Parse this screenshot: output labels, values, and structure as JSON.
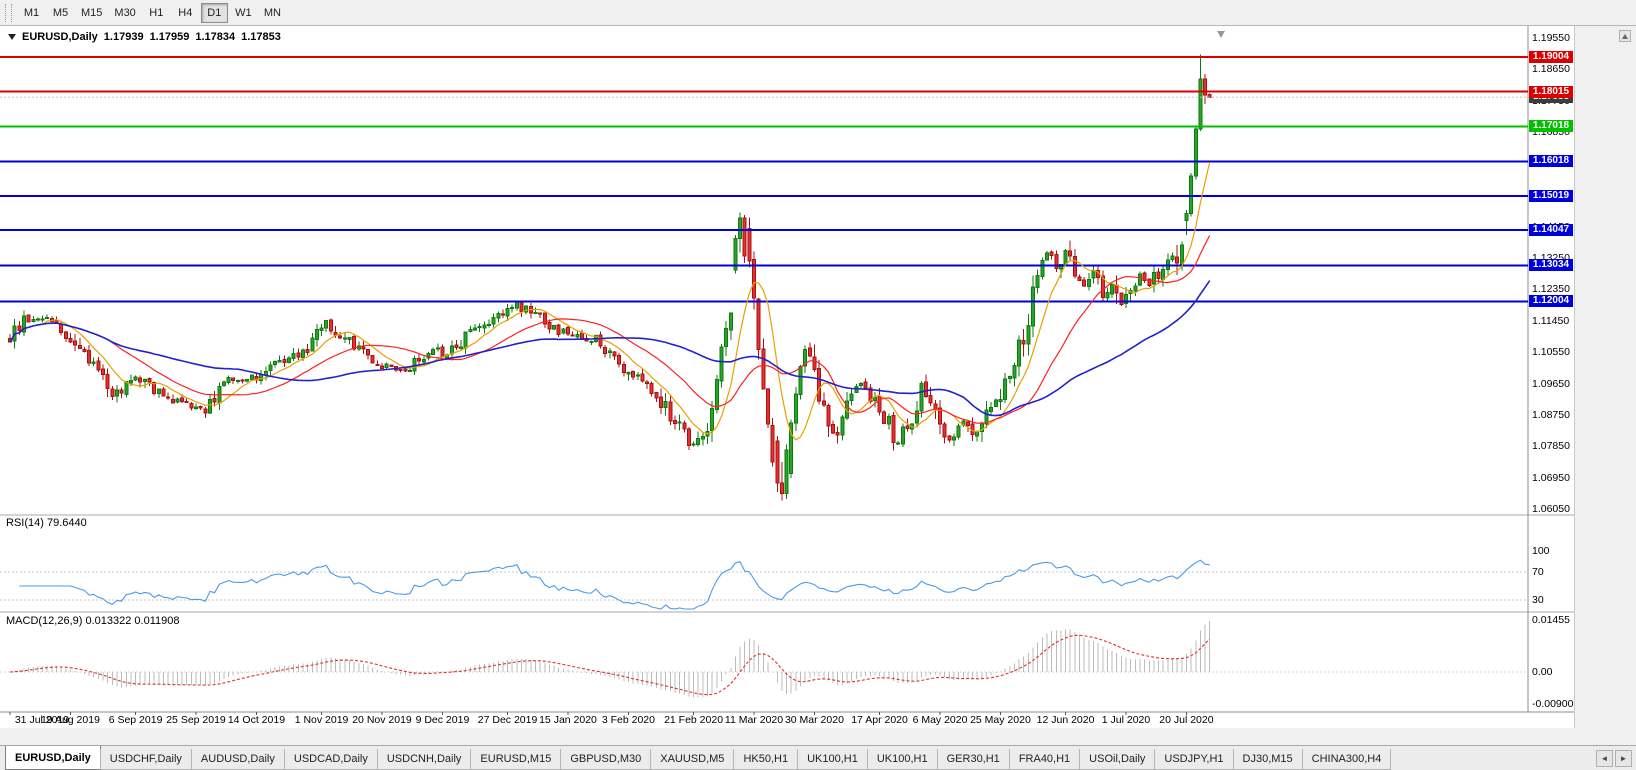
{
  "toolbar": {
    "timeframes": [
      "M1",
      "M5",
      "M15",
      "M30",
      "H1",
      "H4",
      "D1",
      "W1",
      "MN"
    ],
    "active_timeframe": "D1"
  },
  "chart": {
    "title": {
      "symbol": "EURUSD,Daily",
      "open": "1.17939",
      "high": "1.17959",
      "low": "1.17834",
      "close": "1.17853"
    },
    "price_axis": {
      "ticks": [
        "1.19550",
        "1.18650",
        "1.17750",
        "1.16850",
        "1.15950",
        "1.15050",
        "1.14150",
        "1.13250",
        "1.12350",
        "1.11450",
        "1.10550",
        "1.09650",
        "1.08750",
        "1.07850",
        "1.06950",
        "1.06050"
      ],
      "price_max": 1.1978,
      "price_min": 1.06
    },
    "hlines": [
      {
        "value": "1.19004",
        "price": 1.19004,
        "color": "#dd0000"
      },
      {
        "value": "1.18015",
        "price": 1.18015,
        "color": "#dd0000"
      },
      {
        "value": "1.17018",
        "price": 1.17018,
        "color": "#00c000"
      },
      {
        "value": "1.16018",
        "price": 1.16018,
        "color": "#0000dd"
      },
      {
        "value": "1.15019",
        "price": 1.15019,
        "color": "#0000dd"
      },
      {
        "value": "1.14047",
        "price": 1.14047,
        "color": "#0000dd"
      },
      {
        "value": "1.13034",
        "price": 1.13034,
        "color": "#0000dd"
      },
      {
        "value": "1.12004",
        "price": 1.12004,
        "color": "#0000dd"
      }
    ],
    "bid_badge": {
      "value": "1.17853",
      "price": 1.17853,
      "color": "#3c3c3c"
    },
    "colors": {
      "up_fill": "#26a626",
      "up_stroke": "#0f7a0f",
      "down_fill": "#e53030",
      "down_stroke": "#a81111",
      "ma_fast": "#e8a000",
      "ma_mid": "#ff2020",
      "ma_slow": "#2222cc",
      "rsi_line": "#4a9ce8",
      "macd_hist": "#bcbcbc",
      "macd_signal": "#e03030",
      "bid_line": "#c0c0c0",
      "level_dash": "#c8c8c8"
    }
  },
  "rsi": {
    "label": "RSI(14) 79.6440",
    "levels": [
      {
        "label": "100",
        "v": 100
      },
      {
        "label": "70",
        "v": 70
      },
      {
        "label": "30",
        "v": 30
      }
    ]
  },
  "macd": {
    "label": "MACD(12,26,9) 0.013322 0.011908",
    "axis": [
      {
        "label": "0.01455",
        "v": 0.01455
      },
      {
        "label": "0.00",
        "v": 0
      },
      {
        "label": "-0.00900",
        "v": -0.009
      }
    ]
  },
  "date_axis": [
    {
      "label": "31 Jul 2019",
      "i": 0
    },
    {
      "label": "19 Aug 2019",
      "i": 13
    },
    {
      "label": "6 Sep 2019",
      "i": 27
    },
    {
      "label": "25 Sep 2019",
      "i": 40
    },
    {
      "label": "14 Oct 2019",
      "i": 53
    },
    {
      "label": "1 Nov 2019",
      "i": 67
    },
    {
      "label": "20 Nov 2019",
      "i": 80
    },
    {
      "label": "9 Dec 2019",
      "i": 93
    },
    {
      "label": "27 Dec 2019",
      "i": 107
    },
    {
      "label": "15 Jan 2020",
      "i": 120
    },
    {
      "label": "3 Feb 2020",
      "i": 133
    },
    {
      "label": "21 Feb 2020",
      "i": 147
    },
    {
      "label": "11 Mar 2020",
      "i": 160
    },
    {
      "label": "30 Mar 2020",
      "i": 173
    },
    {
      "label": "17 Apr 2020",
      "i": 187
    },
    {
      "label": "6 May 2020",
      "i": 200
    },
    {
      "label": "25 May 2020",
      "i": 213
    },
    {
      "label": "12 Jun 2020",
      "i": 227
    },
    {
      "label": "1 Jul 2020",
      "i": 240
    },
    {
      "label": "20 Jul 2020",
      "i": 253
    }
  ],
  "tabs": {
    "items": [
      "EURUSD,Daily",
      "USDCHF,Daily",
      "AUDUSD,Daily",
      "USDCAD,Daily",
      "USDCNH,Daily",
      "EURUSD,M15",
      "GBPUSD,M30",
      "XAUUSD,M5",
      "HK50,H1",
      "UK100,H1",
      "UK100,H1",
      "GER30,H1",
      "FRA40,H1",
      "USOil,Daily",
      "USDJPY,H1",
      "DJ30,M15",
      "CHINA300,H4"
    ],
    "active_index": 0,
    "scroll_left": "◄",
    "scroll_right": "►"
  },
  "chart_data": {
    "type": "candlestick",
    "symbol": "EURUSD",
    "timeframe": "Daily",
    "last_ohlc": {
      "open": 1.17939,
      "high": 1.17959,
      "low": 1.17834,
      "close": 1.17853
    },
    "num_candles": 259,
    "seed": 20200806,
    "price_path_anchors": [
      [
        0,
        1.1095
      ],
      [
        3,
        1.1145
      ],
      [
        8,
        1.115
      ],
      [
        14,
        1.1085
      ],
      [
        22,
        1.093
      ],
      [
        27,
        1.099
      ],
      [
        31,
        1.0945
      ],
      [
        36,
        1.0915
      ],
      [
        42,
        1.089
      ],
      [
        47,
        1.0975
      ],
      [
        53,
        1.0985
      ],
      [
        59,
        1.103
      ],
      [
        64,
        1.107
      ],
      [
        68,
        1.114
      ],
      [
        74,
        1.1075
      ],
      [
        80,
        1.1015
      ],
      [
        85,
        1.1005
      ],
      [
        91,
        1.106
      ],
      [
        94,
        1.104
      ],
      [
        98,
        1.11
      ],
      [
        103,
        1.1145
      ],
      [
        107,
        1.118
      ],
      [
        109,
        1.1195
      ],
      [
        113,
        1.116
      ],
      [
        117,
        1.1125
      ],
      [
        120,
        1.1105
      ],
      [
        126,
        1.109
      ],
      [
        133,
        1.1
      ],
      [
        139,
        1.093
      ],
      [
        144,
        1.084
      ],
      [
        147,
        1.079
      ],
      [
        150,
        1.086
      ],
      [
        153,
        1.105
      ],
      [
        155,
        1.1145
      ],
      [
        157,
        1.144
      ],
      [
        158,
        1.143
      ],
      [
        160,
        1.118
      ],
      [
        162,
        1.096
      ],
      [
        164,
        1.076
      ],
      [
        166,
        1.064
      ],
      [
        167,
        1.072
      ],
      [
        169,
        1.092
      ],
      [
        171,
        1.106
      ],
      [
        173,
        1.0985
      ],
      [
        177,
        1.081
      ],
      [
        180,
        1.09
      ],
      [
        183,
        1.097
      ],
      [
        186,
        1.0905
      ],
      [
        188,
        1.087
      ],
      [
        191,
        1.079
      ],
      [
        194,
        1.087
      ],
      [
        196,
        1.096
      ],
      [
        199,
        1.0905
      ],
      [
        202,
        1.079
      ],
      [
        205,
        1.085
      ],
      [
        208,
        1.081
      ],
      [
        210,
        1.089
      ],
      [
        213,
        1.0925
      ],
      [
        216,
        1.103
      ],
      [
        219,
        1.114
      ],
      [
        221,
        1.13
      ],
      [
        223,
        1.133
      ],
      [
        225,
        1.129
      ],
      [
        227,
        1.134
      ],
      [
        229,
        1.129
      ],
      [
        231,
        1.1245
      ],
      [
        233,
        1.129
      ],
      [
        235,
        1.121
      ],
      [
        237,
        1.1245
      ],
      [
        239,
        1.119
      ],
      [
        241,
        1.1235
      ],
      [
        243,
        1.128
      ],
      [
        245,
        1.1245
      ],
      [
        247,
        1.128
      ],
      [
        249,
        1.131
      ],
      [
        251,
        1.134
      ],
      [
        253,
        1.1445
      ],
      [
        255,
        1.169
      ],
      [
        256,
        1.184
      ],
      [
        257,
        1.179
      ],
      [
        258,
        1.1785
      ]
    ],
    "explicit_candles": [
      {
        "i": 156,
        "o": 1.129,
        "h": 1.139,
        "l": 1.128,
        "c": 1.138
      },
      {
        "i": 157,
        "o": 1.138,
        "h": 1.1455,
        "l": 1.134,
        "c": 1.144
      },
      {
        "i": 158,
        "o": 1.144,
        "h": 1.1448,
        "l": 1.131,
        "c": 1.133
      },
      {
        "i": 165,
        "o": 1.08,
        "h": 1.0815,
        "l": 1.0655,
        "c": 1.068
      },
      {
        "i": 166,
        "o": 1.068,
        "h": 1.074,
        "l": 1.063,
        "c": 1.065
      },
      {
        "i": 167,
        "o": 1.065,
        "h": 1.079,
        "l": 1.0635,
        "c": 1.0775
      },
      {
        "i": 253,
        "o": 1.1432,
        "h": 1.1462,
        "l": 1.139,
        "c": 1.1452
      },
      {
        "i": 254,
        "o": 1.1452,
        "h": 1.1568,
        "l": 1.1444,
        "c": 1.156
      },
      {
        "i": 255,
        "o": 1.156,
        "h": 1.1702,
        "l": 1.155,
        "c": 1.1695
      },
      {
        "i": 256,
        "o": 1.1695,
        "h": 1.1908,
        "l": 1.1688,
        "c": 1.1838
      },
      {
        "i": 257,
        "o": 1.1838,
        "h": 1.1852,
        "l": 1.1766,
        "c": 1.1792
      },
      {
        "i": 258,
        "o": 1.17939,
        "h": 1.17959,
        "l": 1.17834,
        "c": 1.17853
      }
    ],
    "moving_averages": [
      {
        "period": 8,
        "color_key": "ma_fast"
      },
      {
        "period": 21,
        "color_key": "ma_mid"
      },
      {
        "period": 50,
        "color_key": "ma_slow"
      }
    ],
    "rsi": {
      "period": 14,
      "current_value": 79.644
    },
    "macd": {
      "fast": 12,
      "slow": 26,
      "signal": 9,
      "current_value": 0.013322,
      "current_signal": 0.011908
    },
    "horizontal_levels": [
      1.19004,
      1.18015,
      1.17018,
      1.16018,
      1.15019,
      1.14047,
      1.13034,
      1.12004
    ]
  }
}
